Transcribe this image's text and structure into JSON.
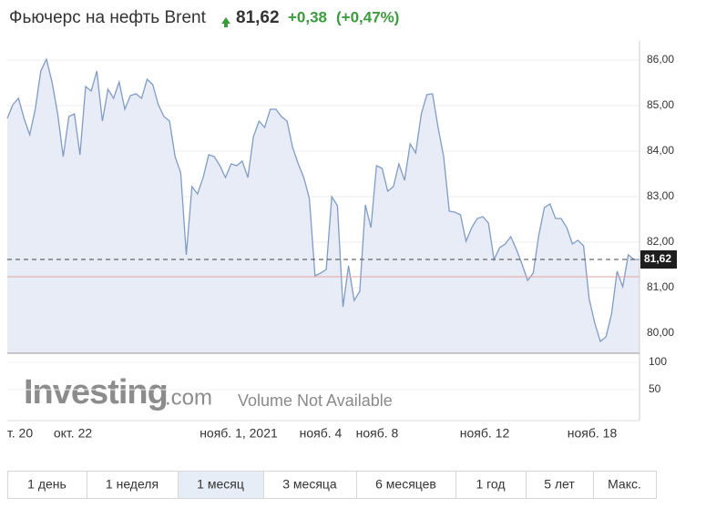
{
  "chart_data": {
    "type": "line",
    "title": "Фьючерс на нефть Brent",
    "current_price": {
      "value": 81.62,
      "label": "81,62"
    },
    "change": "+0,38",
    "change_percent": "(+0,47%)",
    "previous_close": 81.24,
    "series": [
      {
        "name": "Brent",
        "color": "#7f9cc5",
        "values": [
          84.72,
          85.02,
          85.16,
          84.72,
          84.36,
          84.92,
          85.76,
          86.02,
          85.52,
          84.82,
          83.88,
          84.76,
          84.82,
          83.92,
          85.42,
          85.32,
          85.76,
          84.66,
          85.36,
          85.16,
          85.52,
          84.92,
          85.22,
          85.26,
          85.16,
          85.58,
          85.46,
          85.02,
          84.76,
          84.66,
          83.88,
          83.52,
          81.72,
          83.22,
          83.06,
          83.42,
          83.92,
          83.88,
          83.68,
          83.42,
          83.72,
          83.68,
          83.78,
          83.42,
          84.32,
          84.66,
          84.52,
          84.92,
          84.92,
          84.76,
          84.66,
          84.08,
          83.72,
          83.42,
          82.96,
          81.26,
          81.32,
          81.4,
          83.0,
          82.8,
          80.58,
          81.48,
          80.72,
          80.92,
          82.82,
          82.32,
          83.68,
          83.62,
          83.12,
          83.22,
          83.72,
          83.36,
          84.16,
          83.96,
          84.82,
          85.24,
          85.26,
          84.52,
          83.88,
          82.68,
          82.66,
          82.6,
          82.02,
          82.32,
          82.52,
          82.56,
          82.42,
          81.62,
          81.88,
          81.96,
          82.12,
          81.84,
          81.52,
          81.16,
          81.32,
          82.16,
          82.76,
          82.84,
          82.52,
          82.52,
          82.32,
          81.96,
          82.04,
          81.92,
          80.76,
          80.22,
          79.82,
          79.92,
          80.42,
          81.36,
          81.02,
          81.72,
          81.62,
          81.62
        ]
      }
    ],
    "ylim": [
      79.56,
      86.42
    ],
    "yticks": [
      {
        "value": 80,
        "label": "80,00"
      },
      {
        "value": 81,
        "label": "81,00"
      },
      {
        "value": 82,
        "label": "82,00"
      },
      {
        "value": 83,
        "label": "83,00"
      },
      {
        "value": 84,
        "label": "84,00"
      },
      {
        "value": 85,
        "label": "85,00"
      },
      {
        "value": 86,
        "label": "86,00"
      }
    ],
    "grid": true,
    "xtick_labels": [
      "т. 20",
      "окт. 22",
      "нояб. 1, 2021",
      "нояб. 4",
      "нояб. 8",
      "нояб. 12",
      "нояб. 18"
    ],
    "volume": {
      "ylim": [
        0,
        116.67
      ],
      "yticks": [
        50,
        100
      ],
      "note": "Volume Not Available"
    },
    "logo": {
      "brand": "Investing",
      "domain": ".com"
    },
    "periods": [
      "1 день",
      "1 неделя",
      "1 месяц",
      "3 месяца",
      "6 месяцев",
      "1 год",
      "5 лет",
      "Макс."
    ],
    "selected_period": "1 месяц"
  }
}
